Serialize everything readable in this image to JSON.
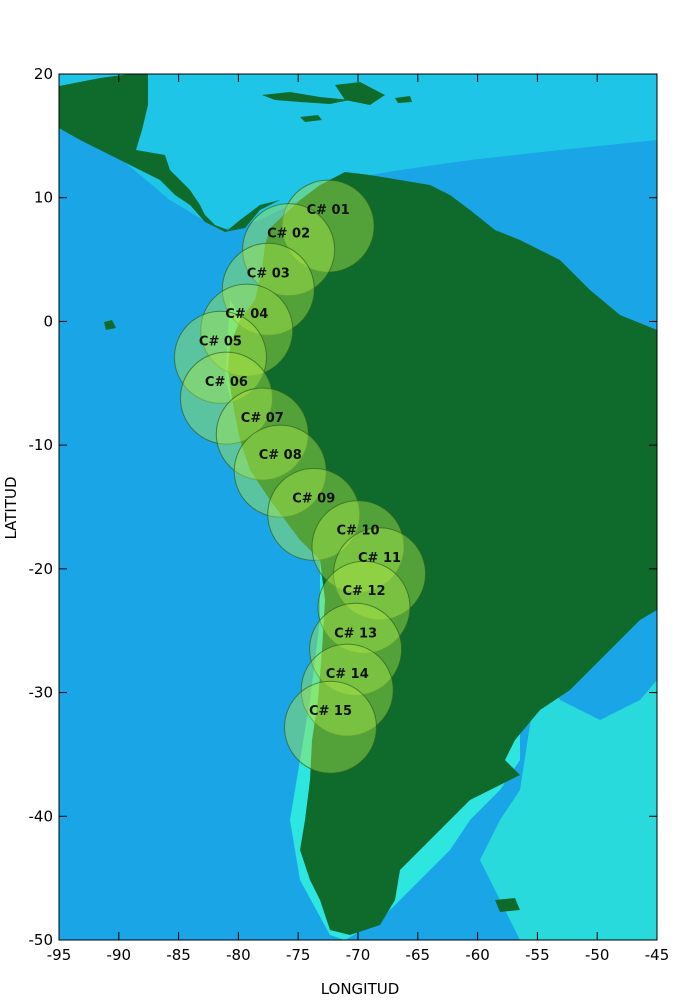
{
  "axes": {
    "xlabel": "LONGITUD",
    "ylabel": "LATITUD",
    "xlim": [
      -95,
      -45
    ],
    "ylim": [
      -50,
      20
    ],
    "xticks": [
      -95,
      -90,
      -85,
      -80,
      -75,
      -70,
      -65,
      -60,
      -55,
      -50,
      -45
    ],
    "yticks": [
      20,
      10,
      0,
      -10,
      -20,
      -30,
      -40,
      -50
    ]
  },
  "colors": {
    "deep_ocean": "#1aa6e6",
    "shallow_ocean": "#22e4e8",
    "land": "#0e6b2c",
    "circle_fill": "#a8e64a"
  },
  "zones": [
    {
      "label": "C# 01",
      "lon": -72.5,
      "lat": 7.7
    },
    {
      "label": "C# 02",
      "lon": -75.8,
      "lat": 5.8
    },
    {
      "label": "C# 03",
      "lon": -77.5,
      "lat": 2.6
    },
    {
      "label": "C# 04",
      "lon": -79.3,
      "lat": -0.7
    },
    {
      "label": "C# 05",
      "lon": -81.5,
      "lat": -2.9
    },
    {
      "label": "C# 06",
      "lon": -81.0,
      "lat": -6.2
    },
    {
      "label": "C# 07",
      "lon": -78.0,
      "lat": -9.1
    },
    {
      "label": "C# 08",
      "lon": -76.5,
      "lat": -12.1
    },
    {
      "label": "C# 09",
      "lon": -73.7,
      "lat": -15.6
    },
    {
      "label": "C# 10",
      "lon": -70.0,
      "lat": -18.2
    },
    {
      "label": "C# 11",
      "lon": -68.2,
      "lat": -20.4
    },
    {
      "label": "C# 12",
      "lon": -69.5,
      "lat": -23.1
    },
    {
      "label": "C# 13",
      "lon": -70.2,
      "lat": -26.5
    },
    {
      "label": "C# 14",
      "lon": -70.9,
      "lat": -29.8
    },
    {
      "label": "C# 15",
      "lon": -72.3,
      "lat": -32.8
    }
  ]
}
